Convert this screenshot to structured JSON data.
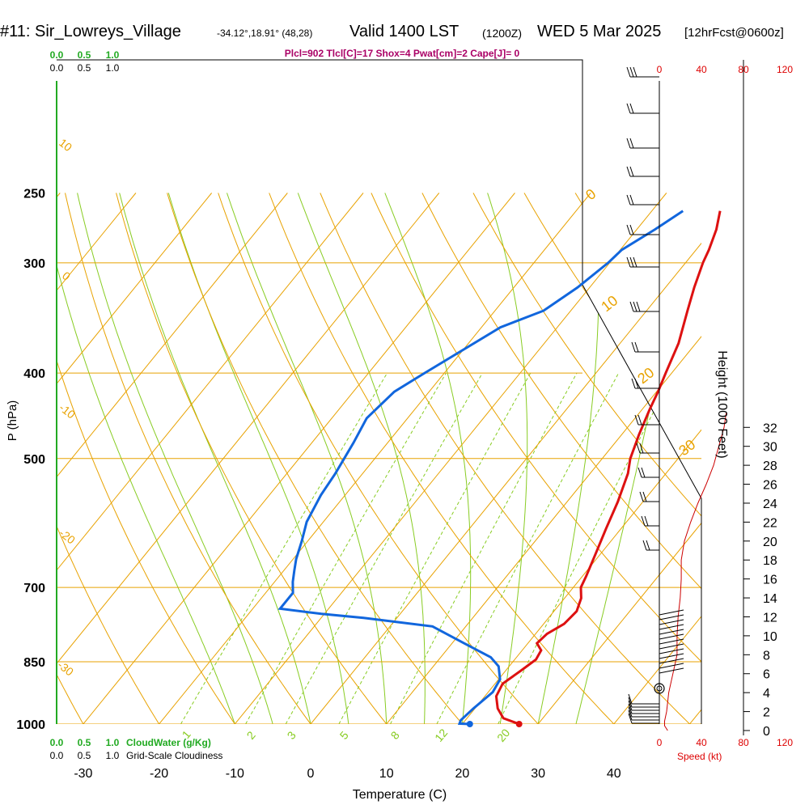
{
  "header": {
    "station": "#11: Sir_Lowreys_Village",
    "location": "-34.12°,18.91° (48,28)",
    "valid": "Valid 1400 LST",
    "zulu": "(1200Z)",
    "date": "WED 5 Mar 2025",
    "forecast": "[12hrFcst@0600z]"
  },
  "params_line": "Plcl=902 Tlcl[C]=17 Shox=4 Pwat[cm]=2 Cape[J]= 0",
  "cloud_water": {
    "top_ticks": [
      "0.0",
      "0.5",
      "1.0"
    ],
    "top_ticks_black": [
      "0.0",
      "0.5",
      "1.0"
    ],
    "bottom_ticks": [
      "0.0",
      "0.5",
      "1.0"
    ],
    "label": "CloudWater (g/Kg)",
    "bottom_ticks_black": [
      "0.0",
      "0.5",
      "1.0"
    ],
    "cloudiness_label": "Grid-Scale Cloudiness"
  },
  "colors": {
    "temperature": "#dd1111",
    "dewpoint": "#1166dd",
    "isobar": "#e8a200",
    "dry_adiabat": "#e8a200",
    "moist_adiabat": "#88cc22",
    "mixing_ratio": "#88cc22",
    "wind_speed": "#cc0000",
    "cloud": "#22aa22",
    "params": "#aa0066"
  },
  "chart_data": {
    "type": "line",
    "xlabel": "Temperature (C)",
    "ylabel": "P (hPa)",
    "ylabel2": "Height (1000 Feet)",
    "xlim": [
      -35,
      36
    ],
    "ylim": [
      1000,
      250
    ],
    "x_ticks": [
      -30,
      -20,
      -10,
      0,
      10,
      20,
      30,
      40
    ],
    "p_ticks": [
      250,
      300,
      400,
      500,
      700,
      850,
      1000
    ],
    "height_ticks": [
      0,
      2,
      4,
      6,
      8,
      10,
      12,
      14,
      16,
      18,
      20,
      22,
      24,
      26,
      28,
      30,
      32
    ],
    "dry_adiabat_labels": [
      "10",
      "0",
      "-10",
      "-20",
      "-30"
    ],
    "isotherm_labels": [
      "0",
      "10",
      "20",
      "30"
    ],
    "mixing_ratio_labels": [
      "1",
      "2",
      "3",
      "5",
      "8",
      "12",
      "20"
    ],
    "series": [
      {
        "name": "Temperature",
        "points": [
          [
            27.5,
            1000
          ],
          [
            24.8,
            985
          ],
          [
            23,
            960
          ],
          [
            21.5,
            930
          ],
          [
            21,
            900
          ],
          [
            22,
            870
          ],
          [
            22.8,
            845
          ],
          [
            22.5,
            825
          ],
          [
            21.2,
            810
          ],
          [
            21.5,
            790
          ],
          [
            22.7,
            770
          ],
          [
            23,
            745
          ],
          [
            22.2,
            720
          ],
          [
            21,
            700
          ],
          [
            20.5,
            680
          ],
          [
            19.3,
            640
          ],
          [
            18,
            600
          ],
          [
            16.7,
            560
          ],
          [
            15,
            520
          ],
          [
            13.7,
            500
          ],
          [
            12.3,
            470
          ],
          [
            11,
            440
          ],
          [
            10.2,
            420
          ],
          [
            9.2,
            400
          ],
          [
            7.7,
            370
          ],
          [
            5.4,
            340
          ],
          [
            3.8,
            320
          ],
          [
            2.3,
            300
          ],
          [
            1.7,
            290
          ],
          [
            0.5,
            275
          ],
          [
            -1,
            262
          ]
        ]
      },
      {
        "name": "Dewpoint",
        "points": [
          [
            21,
            1000
          ],
          [
            19.6,
            999
          ],
          [
            19.4,
            990
          ],
          [
            19.8,
            960
          ],
          [
            20.6,
            920
          ],
          [
            20.2,
            890
          ],
          [
            18.6,
            860
          ],
          [
            16.6,
            840
          ],
          [
            11.6,
            810
          ],
          [
            5.6,
            775
          ],
          [
            -4.4,
            758
          ],
          [
            -10.4,
            750
          ],
          [
            -16.4,
            740
          ],
          [
            -16.4,
            722
          ],
          [
            -16.4,
            710
          ],
          [
            -17.6,
            690
          ],
          [
            -18.6,
            670
          ],
          [
            -19.6,
            650
          ],
          [
            -20.8,
            620
          ],
          [
            -22.2,
            590
          ],
          [
            -23.2,
            550
          ],
          [
            -23.6,
            520
          ],
          [
            -24.5,
            480
          ],
          [
            -25.4,
            450
          ],
          [
            -24.6,
            420
          ],
          [
            -22.6,
            400
          ],
          [
            -17.5,
            355
          ],
          [
            -13.6,
            340
          ],
          [
            -11.6,
            320
          ],
          [
            -10.2,
            300
          ],
          [
            -9.8,
            290
          ],
          [
            -7.6,
            275
          ],
          [
            -5.9,
            262
          ]
        ]
      }
    ],
    "surface_temperature": 27.5,
    "surface_dewpoint": 21,
    "wind_speed_axis": {
      "label": "Speed (kt)",
      "ticks_top": [
        "0",
        "40",
        "80",
        "120"
      ],
      "ticks_bottom": [
        "0",
        "40",
        "80",
        "120"
      ]
    },
    "wind_speed_profile": [
      [
        8,
        0
      ],
      [
        5,
        0.5
      ],
      [
        5,
        1
      ],
      [
        7,
        2
      ],
      [
        8,
        3
      ],
      [
        9,
        4
      ],
      [
        13,
        6
      ],
      [
        17,
        8
      ],
      [
        17,
        10
      ],
      [
        18,
        12
      ],
      [
        20,
        14
      ],
      [
        21,
        16
      ],
      [
        21,
        18
      ],
      [
        24,
        20
      ],
      [
        30,
        22
      ],
      [
        37,
        24
      ],
      [
        45,
        26
      ],
      [
        52,
        28
      ],
      [
        57,
        30
      ],
      [
        62,
        32
      ],
      [
        64,
        33.5
      ]
    ]
  }
}
